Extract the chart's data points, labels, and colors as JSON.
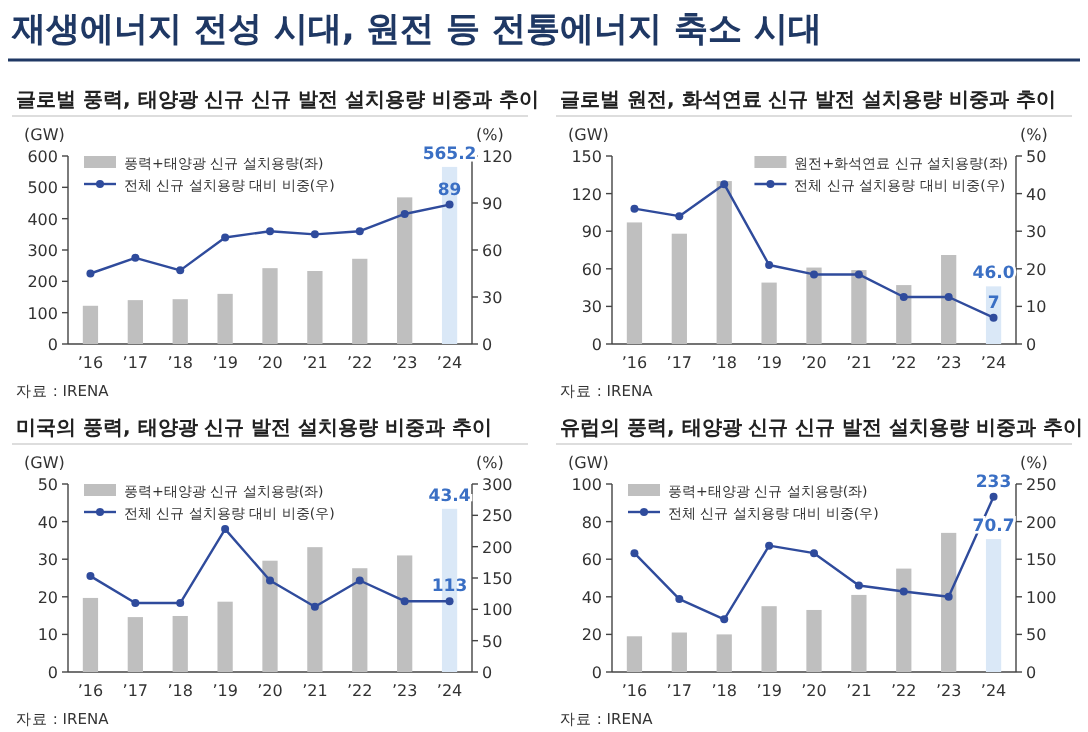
{
  "chart_data": [
    {
      "type": "other",
      "title": "재생에너지 전성 시대, 원전 등 전통에너지 축소 시대"
    },
    {
      "type": "bar",
      "title": "글로벌 풍력, 태양광 신규 신규 발전 설치용량 비중과 추이",
      "ylabel": "(GW)",
      "y2label": "(%)",
      "categories": [
        "’16",
        "’17",
        "’18",
        "’19",
        "’20",
        "’21",
        "’22",
        "’23",
        "’24"
      ],
      "ylim": [
        0,
        600
      ],
      "yticks": [
        0,
        100,
        200,
        300,
        400,
        500,
        600
      ],
      "y2lim": [
        0,
        120
      ],
      "y2ticks": [
        0,
        30,
        60,
        90,
        120
      ],
      "legend": "top left",
      "marker": "circle",
      "annotations": [
        "자료 : IRENA"
      ],
      "series": [
        {
          "name": "풍력+태양광 신규 설치용량(좌)",
          "type": "bar",
          "colors": [
            "#bfbfbf",
            "#bfbfbf",
            "#bfbfbf",
            "#bfbfbf",
            "#bfbfbf",
            "#bfbfbf",
            "#bfbfbf",
            "#bfbfbf",
            "#dae8f7"
          ],
          "values": [
            122,
            140,
            143,
            160,
            242,
            233,
            272,
            468,
            565.2
          ],
          "value_labels": [
            null,
            null,
            null,
            null,
            null,
            null,
            null,
            null,
            "565.2"
          ]
        },
        {
          "name": "전체 신규 설치용량 대비 비중(우)",
          "type": "line",
          "axis": "y2",
          "color": "#2f4b9c",
          "values": [
            45,
            55,
            47,
            68,
            72,
            70,
            72,
            83,
            89
          ],
          "value_labels": [
            null,
            null,
            null,
            null,
            null,
            null,
            null,
            null,
            "89"
          ]
        }
      ]
    },
    {
      "type": "bar",
      "title": "글로벌 원전, 화석연료 신규 발전 설치용량 비중과 추이",
      "ylabel": "(GW)",
      "y2label": "(%)",
      "categories": [
        "’16",
        "’17",
        "’18",
        "’19",
        "’20",
        "’21",
        "’22",
        "’23",
        "’24"
      ],
      "ylim": [
        0,
        150
      ],
      "yticks": [
        0,
        30,
        60,
        90,
        120,
        150
      ],
      "y2lim": [
        0,
        50
      ],
      "y2ticks": [
        0,
        10,
        20,
        30,
        40,
        50
      ],
      "legend": "top right",
      "marker": "circle",
      "annotations": [
        "자료 : IRENA"
      ],
      "series": [
        {
          "name": "원전+화석연료 신규 설치용량(좌)",
          "type": "bar",
          "colors": [
            "#bfbfbf",
            "#bfbfbf",
            "#bfbfbf",
            "#bfbfbf",
            "#bfbfbf",
            "#bfbfbf",
            "#bfbfbf",
            "#bfbfbf",
            "#dae8f7"
          ],
          "values": [
            97,
            88,
            130,
            49,
            61,
            59,
            47,
            71,
            46.0
          ],
          "value_labels": [
            null,
            null,
            null,
            null,
            null,
            null,
            null,
            null,
            "46.0"
          ]
        },
        {
          "name": "전체 신규 설치용량 대비 비중(우)",
          "type": "line",
          "axis": "y2",
          "color": "#2f4b9c",
          "values": [
            36,
            34,
            42.5,
            21,
            18.5,
            18.5,
            12.5,
            12.5,
            7
          ],
          "value_labels": [
            null,
            null,
            null,
            null,
            null,
            null,
            null,
            null,
            "7"
          ]
        }
      ]
    },
    {
      "type": "bar",
      "title": "미국의 풍력, 태양광 신규 발전 설치용량 비중과 추이",
      "ylabel": "(GW)",
      "y2label": "(%)",
      "categories": [
        "’16",
        "’17",
        "’18",
        "’19",
        "’20",
        "’21",
        "’22",
        "’23",
        "’24"
      ],
      "ylim": [
        0,
        50
      ],
      "yticks": [
        0,
        10,
        20,
        30,
        40,
        50
      ],
      "y2lim": [
        0,
        300
      ],
      "y2ticks": [
        0,
        50,
        100,
        150,
        200,
        250,
        300
      ],
      "legend": "top left",
      "marker": "circle",
      "annotations": [
        "자료 : IRENA"
      ],
      "series": [
        {
          "name": "풍력+태양광 신규 설치용량(좌)",
          "type": "bar",
          "colors": [
            "#bfbfbf",
            "#bfbfbf",
            "#bfbfbf",
            "#bfbfbf",
            "#bfbfbf",
            "#bfbfbf",
            "#bfbfbf",
            "#bfbfbf",
            "#dae8f7"
          ],
          "values": [
            19.7,
            14.6,
            14.9,
            18.7,
            29.6,
            33.2,
            27.6,
            31.0,
            43.4
          ],
          "value_labels": [
            null,
            null,
            null,
            null,
            null,
            null,
            null,
            null,
            "43.4"
          ]
        },
        {
          "name": "전체 신규 설치용량 대비 비중(우)",
          "type": "line",
          "axis": "y2",
          "color": "#2f4b9c",
          "values": [
            153,
            110,
            110,
            228,
            146,
            104,
            146,
            113,
            113
          ],
          "value_labels": [
            null,
            null,
            null,
            null,
            null,
            null,
            null,
            null,
            "113"
          ]
        }
      ]
    },
    {
      "type": "bar",
      "title": "유럽의 풍력, 태양광 신규 신규 발전 설치용량 비중과 추이",
      "ylabel": "(GW)",
      "y2label": "(%)",
      "categories": [
        "’16",
        "’17",
        "’18",
        "’19",
        "’20",
        "’21",
        "’22",
        "’23",
        "’24"
      ],
      "ylim": [
        0,
        100
      ],
      "yticks": [
        0,
        20,
        40,
        60,
        80,
        100
      ],
      "y2lim": [
        0,
        250
      ],
      "y2ticks": [
        0,
        50,
        100,
        150,
        200,
        250
      ],
      "legend": "top left",
      "marker": "circle",
      "annotations": [
        "자료 : IRENA"
      ],
      "series": [
        {
          "name": "풍력+태양광 신규 설치용량(좌)",
          "type": "bar",
          "colors": [
            "#bfbfbf",
            "#bfbfbf",
            "#bfbfbf",
            "#bfbfbf",
            "#bfbfbf",
            "#bfbfbf",
            "#bfbfbf",
            "#bfbfbf",
            "#dae8f7"
          ],
          "values": [
            19,
            21,
            20,
            35,
            33,
            41,
            55,
            74,
            70.7
          ],
          "value_labels": [
            null,
            null,
            null,
            null,
            null,
            null,
            null,
            null,
            "70.7"
          ]
        },
        {
          "name": "전체 신규 설치용량 대비 비중(우)",
          "type": "line",
          "axis": "y2",
          "color": "#2f4b9c",
          "values": [
            158,
            97,
            70,
            168,
            158,
            115,
            107,
            100,
            233
          ],
          "value_labels": [
            null,
            null,
            null,
            null,
            null,
            null,
            null,
            null,
            "233"
          ]
        }
      ]
    }
  ]
}
